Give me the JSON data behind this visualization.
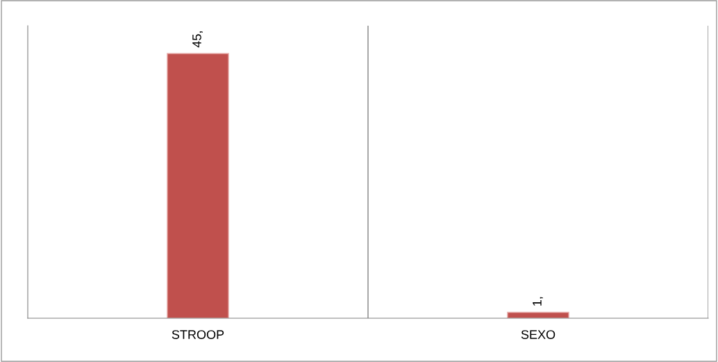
{
  "chart_data": {
    "type": "bar",
    "categories": [
      "STROOP",
      "SEXO"
    ],
    "values": [
      45,
      1
    ],
    "value_labels": [
      "45,",
      "1,"
    ],
    "color": "#c0504d",
    "grid": false,
    "legend": false
  }
}
